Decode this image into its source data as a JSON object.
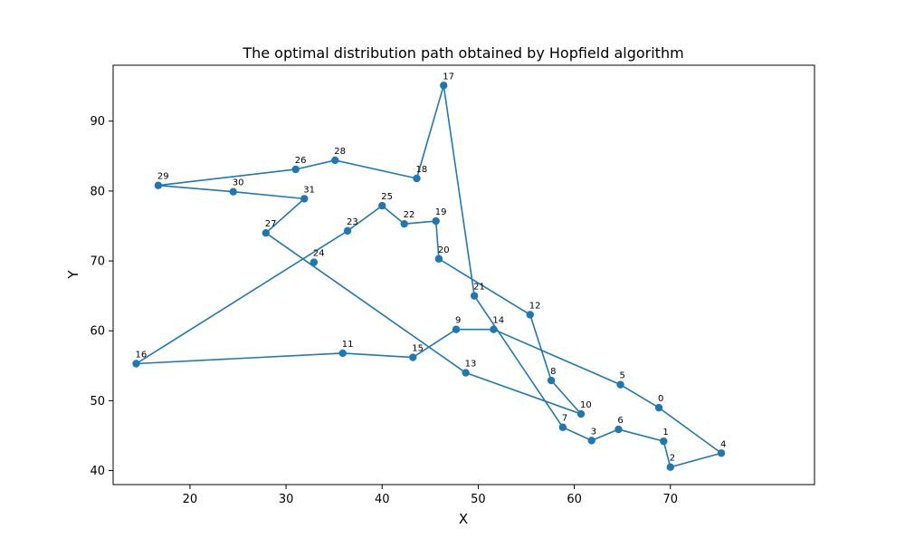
{
  "chart_data": {
    "type": "line",
    "title": "The optimal distribution path obtained by Hopfield algorithm",
    "xlabel": "X",
    "ylabel": "Y",
    "xlim": [
      12,
      85
    ],
    "ylim": [
      38,
      98
    ],
    "x_ticks": [
      20,
      30,
      40,
      50,
      60,
      70
    ],
    "y_ticks": [
      40,
      50,
      60,
      70,
      80,
      90
    ],
    "grid": false,
    "legend": "none",
    "colors": {
      "line": "#1f77b4",
      "marker": "#1f77b4"
    },
    "points": [
      {
        "label": "0",
        "x": 68.8,
        "y": 49.0
      },
      {
        "label": "1",
        "x": 69.3,
        "y": 44.2
      },
      {
        "label": "2",
        "x": 70.0,
        "y": 40.5
      },
      {
        "label": "3",
        "x": 61.8,
        "y": 44.3
      },
      {
        "label": "4",
        "x": 75.3,
        "y": 42.5
      },
      {
        "label": "5",
        "x": 64.8,
        "y": 52.3
      },
      {
        "label": "6",
        "x": 64.6,
        "y": 45.9
      },
      {
        "label": "7",
        "x": 58.8,
        "y": 46.2
      },
      {
        "label": "8",
        "x": 57.6,
        "y": 52.9
      },
      {
        "label": "9",
        "x": 47.7,
        "y": 60.2
      },
      {
        "label": "10",
        "x": 60.7,
        "y": 48.1
      },
      {
        "label": "11",
        "x": 35.9,
        "y": 56.8
      },
      {
        "label": "12",
        "x": 55.4,
        "y": 62.3
      },
      {
        "label": "13",
        "x": 48.7,
        "y": 54.0
      },
      {
        "label": "14",
        "x": 51.6,
        "y": 60.2
      },
      {
        "label": "15",
        "x": 43.2,
        "y": 56.2
      },
      {
        "label": "16",
        "x": 14.4,
        "y": 55.3
      },
      {
        "label": "17",
        "x": 46.4,
        "y": 95.1
      },
      {
        "label": "18",
        "x": 43.6,
        "y": 81.8
      },
      {
        "label": "19",
        "x": 45.6,
        "y": 75.7
      },
      {
        "label": "20",
        "x": 45.9,
        "y": 70.3
      },
      {
        "label": "21",
        "x": 49.6,
        "y": 65.0
      },
      {
        "label": "22",
        "x": 42.3,
        "y": 75.3
      },
      {
        "label": "23",
        "x": 36.4,
        "y": 74.3
      },
      {
        "label": "24",
        "x": 32.9,
        "y": 69.8
      },
      {
        "label": "25",
        "x": 40.0,
        "y": 77.9
      },
      {
        "label": "26",
        "x": 31.0,
        "y": 83.1
      },
      {
        "label": "27",
        "x": 27.9,
        "y": 74.0
      },
      {
        "label": "28",
        "x": 35.1,
        "y": 84.4
      },
      {
        "label": "29",
        "x": 16.7,
        "y": 80.8
      },
      {
        "label": "30",
        "x": 24.5,
        "y": 79.9
      },
      {
        "label": "31",
        "x": 31.9,
        "y": 78.9
      }
    ],
    "path": [
      4,
      2,
      1,
      6,
      3,
      7,
      21,
      17,
      18,
      28,
      26,
      29,
      30,
      31,
      27,
      13,
      10,
      8,
      12,
      20,
      19,
      22,
      25,
      23,
      16,
      11,
      15,
      9,
      14,
      5,
      0,
      4
    ]
  }
}
